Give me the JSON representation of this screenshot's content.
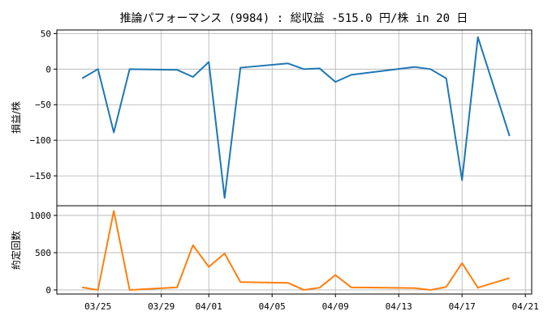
{
  "chart_data": {
    "type": "line",
    "title": "推論パフォーマンス (9984) : 総収益 -515.0 円/株 in 20 日",
    "x_ticks": [
      "03/25",
      "03/29",
      "04/01",
      "04/05",
      "04/09",
      "04/13",
      "04/17",
      "04/21"
    ],
    "x_dates": [
      "03-24",
      "03-25",
      "03-26",
      "03-27",
      "03-30",
      "03-31",
      "04-01",
      "04-02",
      "04-03",
      "04-06",
      "04-07",
      "04-08",
      "04-09",
      "04-10",
      "04-14",
      "04-15",
      "04-16",
      "04-17",
      "04-18",
      "04-20"
    ],
    "panels": [
      {
        "ylabel": "損益/株",
        "color": "#1f77b4",
        "ylim": [
          -192,
          55
        ],
        "yticks": [
          50,
          0,
          -50,
          -100,
          -150
        ],
        "ytick_labels": [
          "50",
          "0",
          "−50",
          "−100",
          "−150"
        ],
        "values": [
          -13,
          0,
          -89,
          0,
          -1,
          -11,
          10,
          -181,
          2,
          8,
          0,
          1,
          -18,
          -8,
          3,
          0,
          -13,
          -156,
          45,
          -94
        ]
      },
      {
        "ylabel": "約定回数",
        "color": "#ff7f0e",
        "ylim": [
          -55,
          1130
        ],
        "yticks": [
          1000,
          500,
          0
        ],
        "ytick_labels": [
          "1000",
          "500",
          "0"
        ],
        "values": [
          35,
          0,
          1060,
          0,
          35,
          600,
          310,
          490,
          105,
          95,
          0,
          30,
          200,
          35,
          25,
          0,
          40,
          360,
          30,
          160
        ]
      }
    ]
  }
}
